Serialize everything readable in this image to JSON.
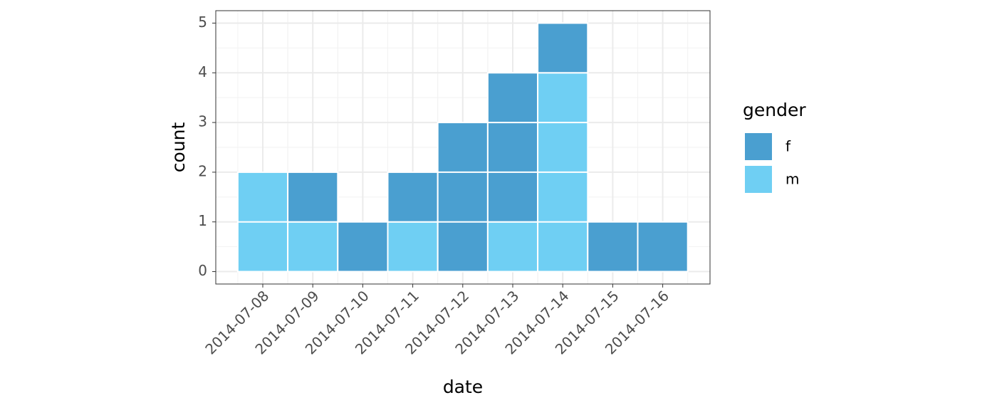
{
  "chart_data": {
    "type": "bar",
    "stacked": true,
    "xlabel": "date",
    "ylabel": "count",
    "categories": [
      "2014-07-08",
      "2014-07-09",
      "2014-07-10",
      "2014-07-11",
      "2014-07-12",
      "2014-07-13",
      "2014-07-14",
      "2014-07-15",
      "2014-07-16"
    ],
    "series": [
      {
        "name": "f",
        "color": "#4a9fd0",
        "values": [
          0,
          1,
          1,
          1,
          3,
          3,
          1,
          1,
          1
        ]
      },
      {
        "name": "m",
        "color": "#6fcff3",
        "values": [
          2,
          1,
          0,
          1,
          0,
          1,
          4,
          0,
          0
        ]
      }
    ],
    "stack_order": [
      "m",
      "f"
    ],
    "ylim": [
      -0.25,
      5.25
    ],
    "yticks": [
      0,
      1,
      2,
      3,
      4,
      5
    ],
    "grid": true,
    "legend_title": "gender",
    "legend_position": "right"
  }
}
